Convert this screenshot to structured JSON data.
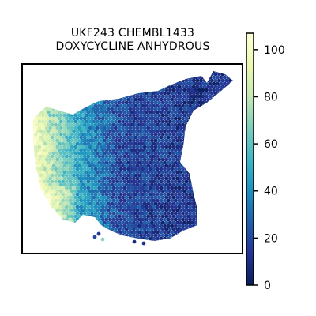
{
  "chart_data": {
    "type": "heatmap",
    "subtype": "hexbin spatial map",
    "title_lines": [
      "UKF243 CHEMBL1433",
      "DOXYCYCLINE ANHYDROUS"
    ],
    "xlabel": "",
    "ylabel": "",
    "axis_ticks_shown": false,
    "colormap": "YlGnBu_r",
    "colorbar": {
      "placement": "right",
      "range": [
        0,
        107
      ],
      "ticks": [
        0,
        20,
        40,
        60,
        80,
        100
      ],
      "colors": [
        "#081d58",
        "#253494",
        "#225ea8",
        "#1d91c0",
        "#41b6c4",
        "#7fcdbb",
        "#c7e9b4",
        "#edf8b1",
        "#ffffd9"
      ]
    },
    "spatial_pattern": "high values (~70-107) along left edge, moderate (~40-60) in a band to its right, low values (~5-30) across the central and right regions"
  }
}
